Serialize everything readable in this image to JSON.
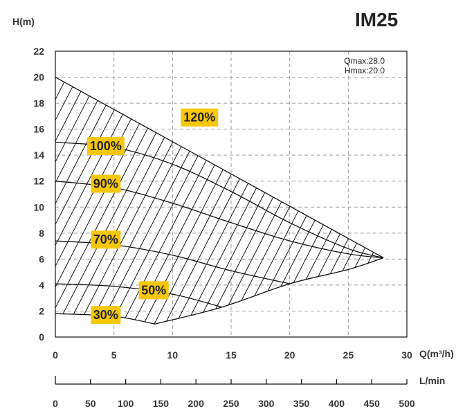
{
  "chart_data": {
    "type": "line",
    "title": "IM25",
    "ylabel": "H(m)",
    "xlabel": "Q(m³/h)",
    "x2label": "L/min",
    "xlim": [
      0,
      30
    ],
    "ylim": [
      0,
      22
    ],
    "x_ticks": [
      "0",
      "5",
      "10",
      "15",
      "20",
      "25",
      "30"
    ],
    "y_ticks": [
      "0",
      "2",
      "4",
      "6",
      "8",
      "10",
      "12",
      "14",
      "16",
      "18",
      "20",
      "22"
    ],
    "x2_ticks": [
      "0",
      "50",
      "100",
      "150",
      "200",
      "250",
      "300",
      "350",
      "400",
      "450",
      "500"
    ],
    "x2_values": [
      0,
      50,
      100,
      150,
      200,
      250,
      300,
      350,
      400,
      450,
      500
    ],
    "annotation": [
      "Qmax:28.0",
      "Hmax:20.0"
    ],
    "grid": true,
    "series": [
      {
        "name": "120%",
        "shutoff_head": 20.0,
        "points": [
          [
            0,
            20.0
          ],
          [
            28.0,
            6.1
          ]
        ]
      },
      {
        "name": "100%",
        "shutoff_head": 15.0,
        "points": [
          [
            0,
            15.0
          ],
          [
            5,
            14.6
          ],
          [
            10,
            13.3
          ],
          [
            15,
            11.2
          ],
          [
            20,
            8.8
          ],
          [
            25,
            6.8
          ],
          [
            28.0,
            6.1
          ]
        ]
      },
      {
        "name": "90%",
        "shutoff_head": 12.0,
        "points": [
          [
            0,
            12.0
          ],
          [
            5,
            11.5
          ],
          [
            10,
            10.3
          ],
          [
            15,
            8.8
          ],
          [
            20,
            7.4
          ],
          [
            25,
            6.4
          ],
          [
            28.0,
            6.1
          ]
        ]
      },
      {
        "name": "70%",
        "shutoff_head": 7.4,
        "points": [
          [
            0,
            7.4
          ],
          [
            5,
            7.1
          ],
          [
            10,
            6.3
          ],
          [
            15,
            5.1
          ],
          [
            20,
            4.1
          ]
        ]
      },
      {
        "name": "50%",
        "shutoff_head": 4.1,
        "points": [
          [
            0,
            4.1
          ],
          [
            5,
            3.9
          ],
          [
            10,
            3.3
          ],
          [
            14.2,
            2.3
          ]
        ]
      },
      {
        "name": "30%",
        "shutoff_head": 1.8,
        "points": [
          [
            0,
            1.8
          ],
          [
            5,
            1.6
          ],
          [
            8.5,
            1.0
          ]
        ]
      }
    ],
    "envelope_lower": [
      [
        8.5,
        1.0
      ],
      [
        14.2,
        2.3
      ],
      [
        20,
        4.1
      ],
      [
        25,
        5.2
      ],
      [
        28.0,
        6.1
      ]
    ],
    "label_positions": {
      "120%": [
        12.3,
        16.9
      ],
      "100%": [
        4.3,
        14.7
      ],
      "90%": [
        4.3,
        11.8
      ],
      "70%": [
        4.3,
        7.5
      ],
      "50%": [
        8.4,
        3.6
      ],
      "30%": [
        4.3,
        1.7
      ]
    },
    "colors": {
      "label_bg": "#f7c70a",
      "curve": "#111111",
      "grid": "#9a9a9a"
    }
  }
}
